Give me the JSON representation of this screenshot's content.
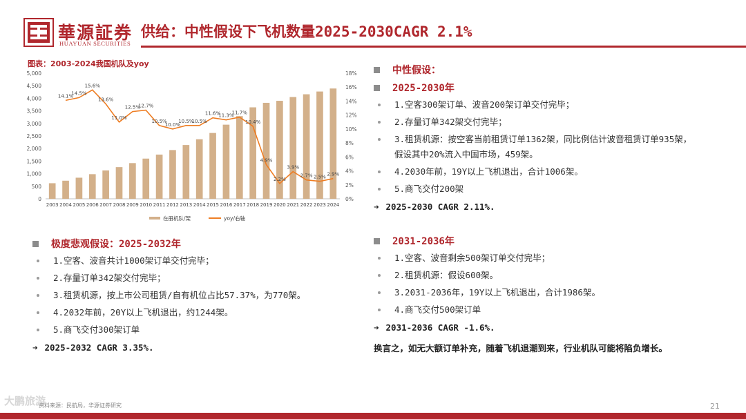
{
  "brand": {
    "name_cn": "華源証券",
    "name_en": "HUAYUAN SECURITIES"
  },
  "title": "供给：中性假设下飞机数量2025-2030CAGR 2.1%",
  "chart": {
    "caption": "图表：2003-2024我国机队及yoy"
  },
  "chart_data": {
    "type": "bar",
    "categories": [
      "2003",
      "2004",
      "2005",
      "2006",
      "2007",
      "2008",
      "2009",
      "2010",
      "2011",
      "2012",
      "2013",
      "2014",
      "2015",
      "2016",
      "2017",
      "2018",
      "2019",
      "2020",
      "2021",
      "2022",
      "2023",
      "2024"
    ],
    "series": [
      {
        "name": "在册机队/架",
        "type": "bar",
        "axis": "left",
        "color": "#d3b08a",
        "values": [
          620,
          720,
          840,
          980,
          1130,
          1260,
          1420,
          1600,
          1760,
          1940,
          2140,
          2370,
          2620,
          2950,
          3290,
          3640,
          3820,
          3900,
          4050,
          4160,
          4270,
          4390
        ]
      },
      {
        "name": "yoy/右轴",
        "type": "line",
        "axis": "right",
        "color": "#ee7d23",
        "values": [
          null,
          14.1,
          14.5,
          15.6,
          13.6,
          11.0,
          12.5,
          12.7,
          10.5,
          10.0,
          10.5,
          10.5,
          11.6,
          11.3,
          11.7,
          10.4,
          4.9,
          2.2,
          3.9,
          2.7,
          2.5,
          2.9
        ],
        "labels": [
          "",
          "14.1%",
          "14.5%",
          "15.6%",
          "13.6%",
          "11.0%",
          "12.5%",
          "12.7%",
          "10.5%",
          "10.0%",
          "10.5%",
          "10.5%",
          "11.6%",
          "11.3%",
          "11.7%",
          "10.4%",
          "4.9%",
          "2.2%",
          "3.9%",
          "2.7%",
          "2.5%",
          "2.9%"
        ]
      }
    ],
    "y_left": {
      "min": 0,
      "max": 5000,
      "ticks": [
        "0",
        "500",
        "1,000",
        "1,500",
        "2,000",
        "2,500",
        "3,000",
        "3,500",
        "4,000",
        "4,500",
        "5,000"
      ]
    },
    "y_right": {
      "min": 0,
      "max": 18,
      "ticks": [
        "0%",
        "2%",
        "4%",
        "6%",
        "8%",
        "10%",
        "12%",
        "14%",
        "16%",
        "18%"
      ]
    },
    "legend": [
      "在册机队/架",
      "yoy/右轴"
    ],
    "legend_position": "bottom"
  },
  "neutral": {
    "label": "中性假设：",
    "period": "2025-2030年",
    "items": [
      "1.空客300架订单、波音200架订单交付完毕；",
      "2.存量订单342架交付完毕；",
      "3.租赁机源：按空客当前租赁订单1362架，同比例估计波音租赁订单935架，假设其中20%流入中国市场，459架。",
      "4.2030年前，19Y以上飞机退出，合计1006架。",
      "5.商飞交付200架"
    ],
    "cagr": "2025-2030 CAGR 2.11%."
  },
  "pessimistic": {
    "label": "极度悲观假设：2025-2032年",
    "items": [
      "1.空客、波音共计1000架订单交付完毕；",
      "2.存量订单342架交付完毕；",
      "3.租赁机源，按上市公司租赁/自有机位占比57.37%，为770架。",
      "4.2032年前，20Y以上飞机退出，约1244架。",
      "5.商飞交付300架订单"
    ],
    "cagr": "2025-2032 CAGR 3.35%."
  },
  "later": {
    "period": "2031-2036年",
    "items": [
      "1.空客、波音剩余500架订单交付完毕；",
      "2.租赁机源：假设600架。",
      "3.2031-2036年，19Y以上飞机退出，合计1986架。",
      "4.商飞交付500架订单"
    ],
    "cagr": "2031-2036 CAGR -1.6%."
  },
  "arrow": "➜",
  "conclusion": "换言之，如无大额订单补充，随着飞机退潮到来，行业机队可能将陷负增长。",
  "footer": {
    "source": "资料来源：民航局，华源证券研究",
    "watermark": "大鹏旅游",
    "page": "21"
  },
  "colors": {
    "brand_red": "#b0272d",
    "bar": "#d3b08a",
    "line": "#ee7d23"
  }
}
